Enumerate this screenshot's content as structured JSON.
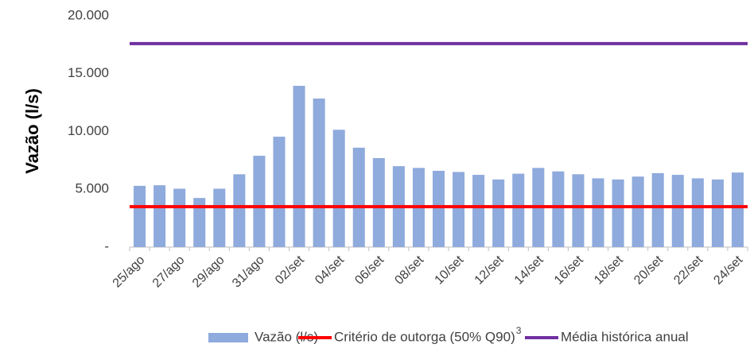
{
  "chart_data": {
    "type": "bar",
    "y_label": "Vazão (l/s)",
    "categories": [
      "25/ago",
      null,
      "27/ago",
      null,
      "29/ago",
      null,
      "31/ago",
      null,
      "02/set",
      null,
      "04/set",
      null,
      "06/set",
      null,
      "08/set",
      null,
      "10/set",
      null,
      "12/set",
      null,
      "14/set",
      null,
      "16/set",
      null,
      "18/set",
      null,
      "20/set",
      null,
      "22/set",
      null,
      "24/set"
    ],
    "series": [
      {
        "name": "Vazão (l/s)",
        "type": "bar",
        "color": "#8faadc",
        "values": [
          5300,
          5350,
          5050,
          4250,
          5050,
          6300,
          7900,
          9550,
          13950,
          12850,
          10150,
          8600,
          7700,
          7000,
          6850,
          6600,
          6500,
          6250,
          5850,
          6350,
          6850,
          6550,
          6300,
          5950,
          5850,
          6100,
          6400,
          6250,
          5950,
          5850,
          6450
        ]
      },
      {
        "name": "Critério de outorga (50% Q90)",
        "name_superscript": "3",
        "type": "hline",
        "color": "#ff0000",
        "value": 3500
      },
      {
        "name": "Média histórica anual",
        "type": "hline",
        "color": "#7030a0",
        "value": 17600
      }
    ],
    "ylim": [
      0,
      20000
    ],
    "yticks": [
      {
        "value": 0,
        "label": "-"
      },
      {
        "value": 5000,
        "label": "5.000"
      },
      {
        "value": 10000,
        "label": "10.000"
      },
      {
        "value": 15000,
        "label": "15.000"
      },
      {
        "value": 20000,
        "label": "20.000"
      }
    ],
    "grid": false,
    "legend": "bottom"
  }
}
